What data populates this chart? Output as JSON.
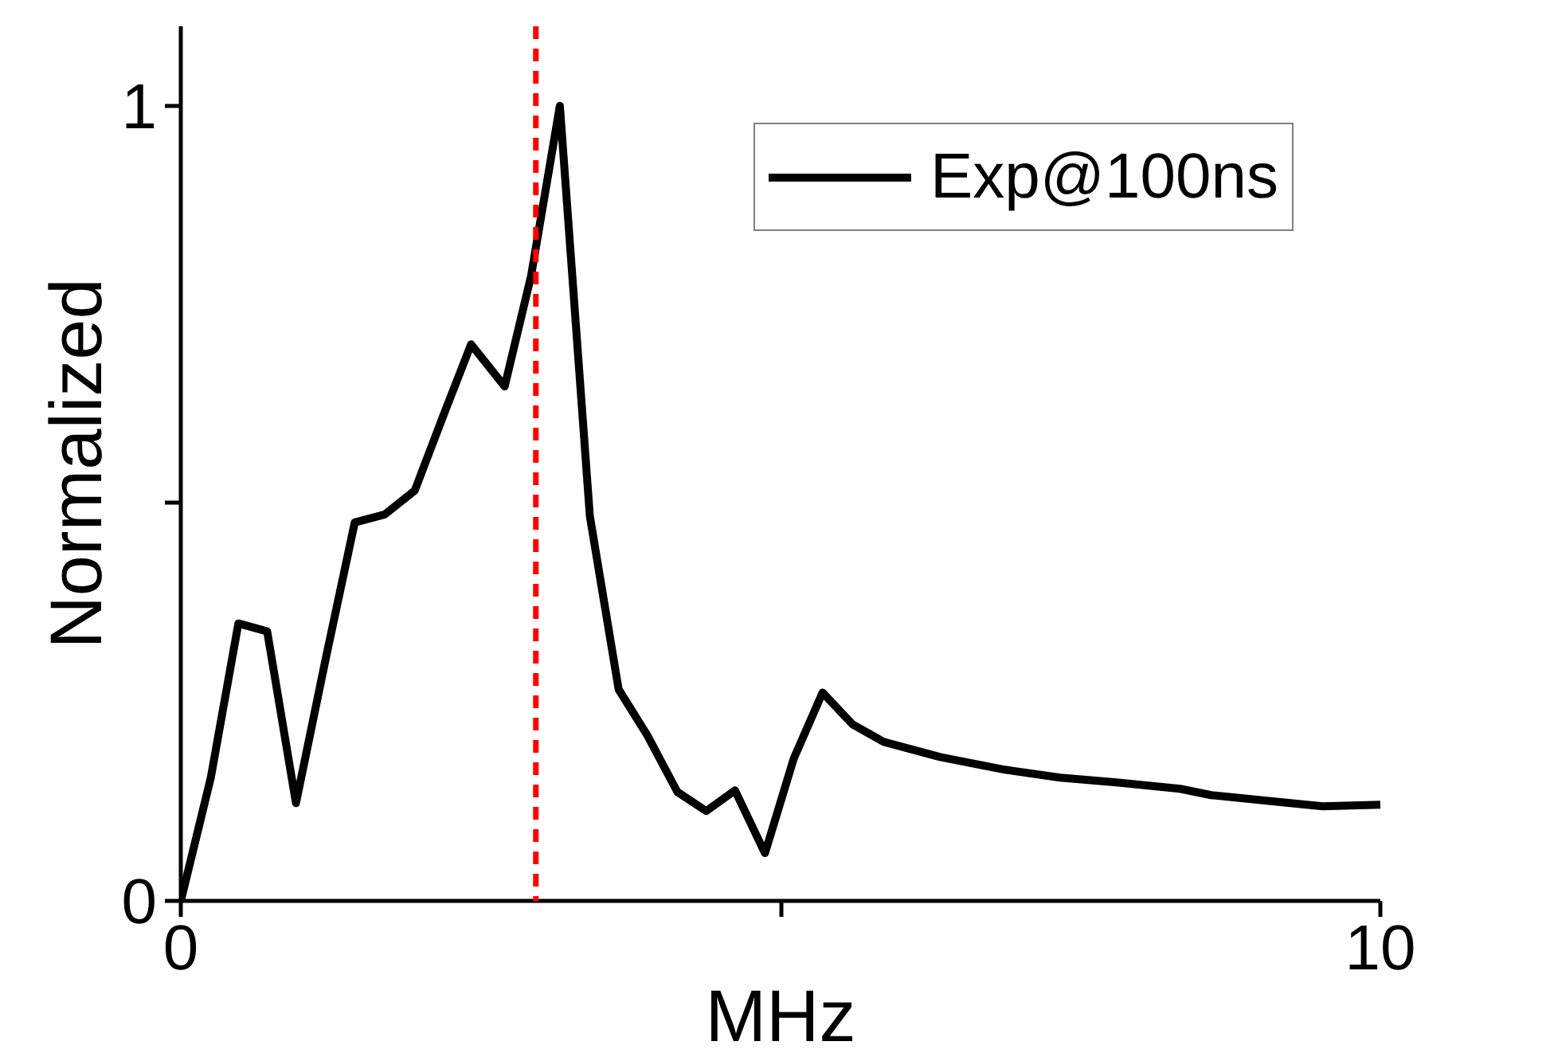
{
  "chart_data": {
    "type": "line",
    "xlabel": "MHz",
    "ylabel": "Normalized",
    "x": [
      0,
      0.25,
      0.48,
      0.72,
      0.96,
      1.21,
      1.45,
      1.7,
      1.95,
      2.19,
      2.42,
      2.7,
      2.92,
      3.16,
      3.41,
      3.65,
      3.89,
      4.14,
      4.38,
      4.62,
      4.87,
      5.11,
      5.35,
      5.6,
      5.86,
      6.33,
      6.87,
      7.33,
      7.8,
      8.33,
      8.59,
      9.12,
      9.52,
      10
    ],
    "series": [
      {
        "name": "Exp@100ns",
        "color": "#000000",
        "values": [
          0,
          0.155,
          0.349,
          0.339,
          0.123,
          0.306,
          0.476,
          0.486,
          0.516,
          0.611,
          0.7,
          0.647,
          0.786,
          1.0,
          0.484,
          0.266,
          0.208,
          0.137,
          0.113,
          0.139,
          0.06,
          0.179,
          0.262,
          0.222,
          0.2,
          0.181,
          0.165,
          0.155,
          0.149,
          0.141,
          0.133,
          0.125,
          0.119,
          0.121
        ]
      }
    ],
    "xlim": [
      0,
      10
    ],
    "ylim": [
      0,
      1.1
    ],
    "xticks": [
      0,
      {
        "value": 5,
        "label": null
      },
      10
    ],
    "yticks": [
      0,
      {
        "value": 0.5,
        "label": null
      },
      1
    ],
    "ref_lines": [
      {
        "axis": "x",
        "value": 2.96,
        "color": "#ff0000",
        "line_style": "dashed"
      }
    ],
    "legend": "top right",
    "grid": false,
    "line_style": "solid",
    "marker": "none"
  }
}
